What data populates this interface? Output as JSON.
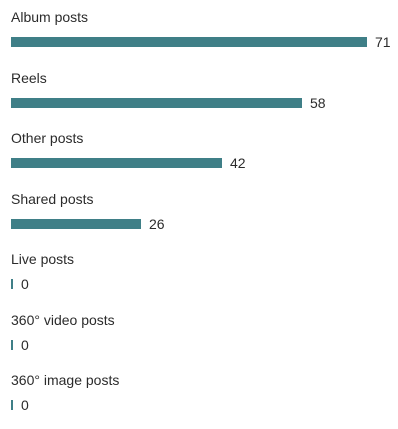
{
  "chart_data": {
    "type": "bar",
    "orientation": "horizontal",
    "categories": [
      "Album posts",
      "Reels",
      "Other posts",
      "Shared posts",
      "Live posts",
      "360° video posts",
      "360° image posts"
    ],
    "values": [
      71,
      58,
      42,
      26,
      0,
      0,
      0
    ],
    "value_labels": [
      "71",
      "58",
      "42",
      "26",
      "0",
      "0",
      "0"
    ],
    "bar_color": "#3f7f87",
    "xlim": [
      0,
      71
    ]
  }
}
